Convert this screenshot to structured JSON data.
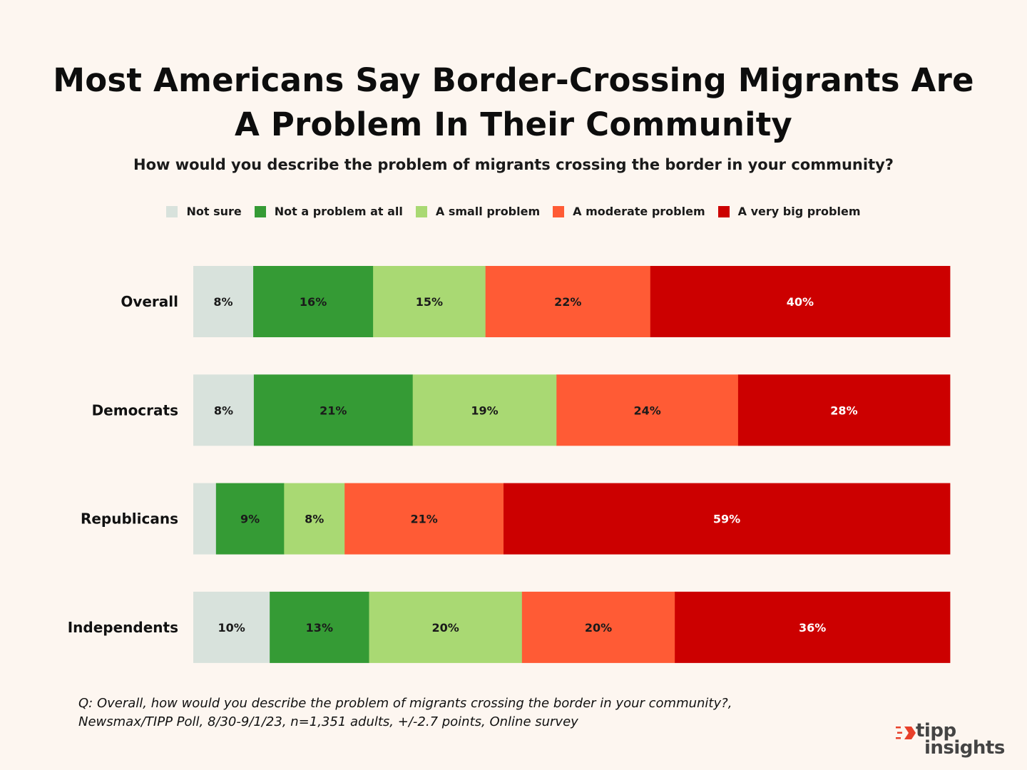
{
  "chart_data": {
    "type": "bar",
    "orientation": "horizontal",
    "stacked": true,
    "title": "Most Americans Say Border-Crossing Migrants Are A Problem In Their Community",
    "title_lines": [
      "Most Americans Say Border-Crossing Migrants Are",
      "A Problem In Their Community"
    ],
    "subtitle": "How would you describe the problem of migrants crossing the border in your community?",
    "categories": [
      "Overall",
      "Democrats",
      "Republicans",
      "Independents"
    ],
    "series": [
      {
        "name": "Not sure",
        "color": "#d8e2dc",
        "label_color": "#1a1a1a",
        "values": [
          8,
          8,
          3,
          10
        ],
        "labels": [
          "8%",
          "8%",
          "",
          "10%"
        ]
      },
      {
        "name": "Not a problem at all",
        "color": "#359b35",
        "label_color": "#1a1a1a",
        "values": [
          16,
          21,
          9,
          13
        ],
        "labels": [
          "16%",
          "21%",
          "9%",
          "13%"
        ]
      },
      {
        "name": "A small problem",
        "color": "#a9d973",
        "label_color": "#1a1a1a",
        "values": [
          15,
          19,
          8,
          20
        ],
        "labels": [
          "15%",
          "19%",
          "8%",
          "20%"
        ]
      },
      {
        "name": "A moderate problem",
        "color": "#ff5b35",
        "label_color": "#1a1a1a",
        "values": [
          22,
          24,
          21,
          20
        ],
        "labels": [
          "22%",
          "24%",
          "21%",
          "20%"
        ]
      },
      {
        "name": "A very big problem",
        "color": "#cc0000",
        "label_color": "#ffffff",
        "values": [
          40,
          28,
          59,
          36
        ],
        "labels": [
          "40%",
          "28%",
          "59%",
          "36%"
        ]
      }
    ],
    "xlim": [
      0,
      100
    ],
    "grid": false,
    "legend_position": "top-center"
  },
  "footnote": [
    "Q: Overall, how would you describe the problem of migrants crossing the border in your community?,",
    "Newsmax/TIPP Poll, 8/30-9/1/23, n=1,351 adults, +/-2.7 points, Online survey"
  ],
  "logo": {
    "line1": "tipp",
    "line2": "insights",
    "mark_color": "#e8402a",
    "text_color": "#444444"
  }
}
